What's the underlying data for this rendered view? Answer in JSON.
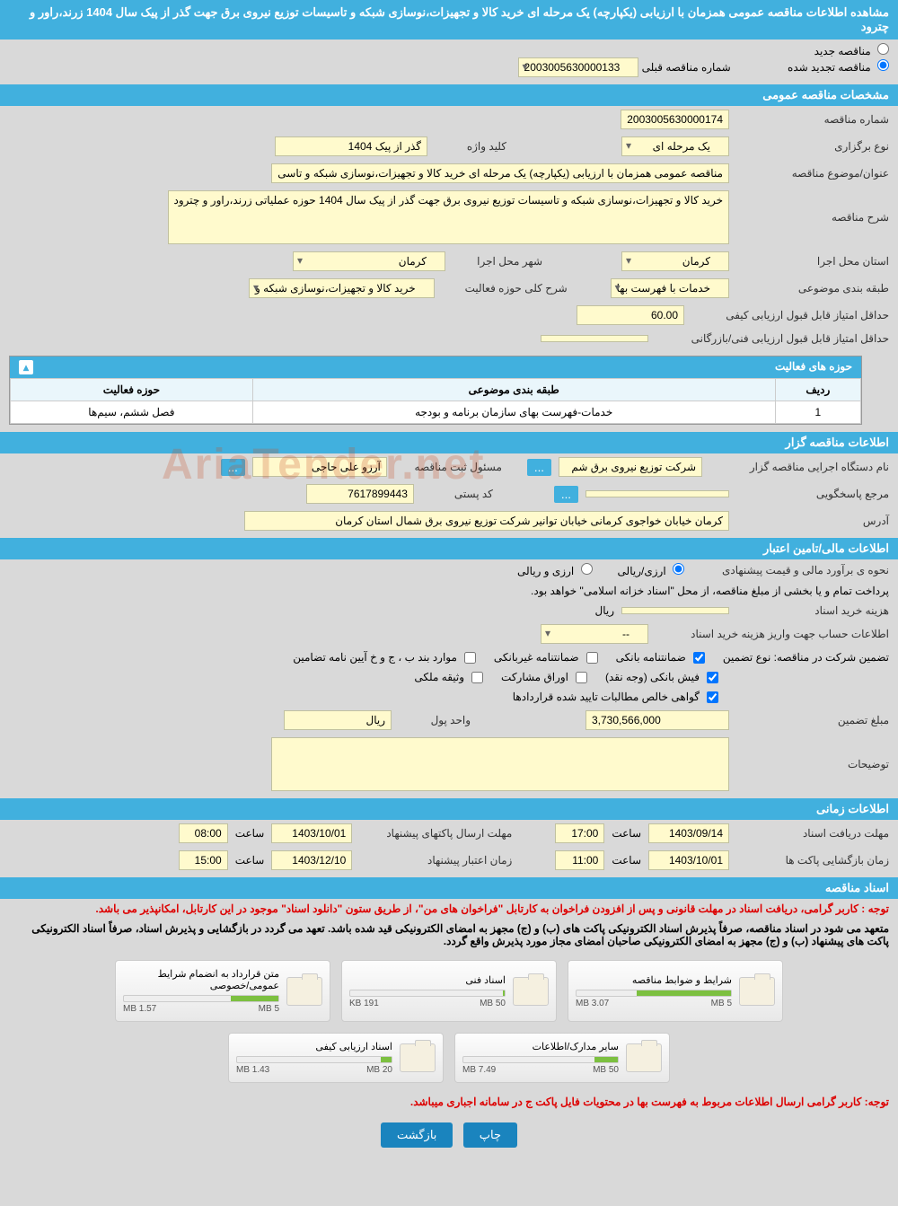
{
  "header": {
    "title": "مشاهده اطلاعات مناقصه عمومی همزمان با ارزیابی (یکپارچه) یک مرحله ای خرید کالا و تجهیزات،نوسازی شبکه و تاسیسات توزیع نیروی برق جهت گذر از پیک سال 1404 زرند،راور و چترود"
  },
  "tender_type": {
    "new_label": "مناقصه جدید",
    "renewed_label": "مناقصه تجدید شده",
    "prev_number_label": "شماره مناقصه قبلی",
    "prev_number": "2003005630000133"
  },
  "sections": {
    "general": "مشخصات مناقصه عمومی",
    "activity_areas": "حوزه های فعالیت",
    "organizer": "اطلاعات مناقصه گزار",
    "financial": "اطلاعات مالی/تامین اعتبار",
    "timing": "اطلاعات زمانی",
    "documents": "اسناد مناقصه"
  },
  "general": {
    "tender_no_label": "شماره مناقصه",
    "tender_no": "2003005630000174",
    "hold_type_label": "نوع برگزاری",
    "hold_type": "یک مرحله ای",
    "keyword_label": "کلید واژه",
    "keyword": "گذر از پیک 1404",
    "subject_label": "عنوان/موضوع مناقصه",
    "subject": "مناقصه عمومی همزمان با ارزیابی (یکپارچه) یک مرحله ای خرید کالا و تجهیزات،نوسازی شبکه و تاسی",
    "desc_label": "شرح مناقصه",
    "desc": "خرید کالا و تجهیزات،نوسازی شبکه و تاسیسات توزیع نیروی برق جهت گذر از پیک سال 1404 حوزه عملیاتی زرند،راور و چترود",
    "province_label": "استان محل اجرا",
    "province": "کرمان",
    "city_label": "شهر محل اجرا",
    "city": "کرمان",
    "category_label": "طبقه بندی موضوعی",
    "category": "خدمات با فهرست بها",
    "activity_desc_label": "شرح کلی حوزه فعالیت",
    "activity_desc": "خرید کالا و تجهیزات،نوسازی شبکه و",
    "min_quality_label": "حداقل امتیاز قابل قبول ارزیابی کیفی",
    "min_quality": "60.00",
    "min_tech_label": "حداقل امتیاز قابل قبول ارزیابی فنی/بازرگانی",
    "min_tech": ""
  },
  "activity_table": {
    "col_row": "ردیف",
    "col_category": "طبقه بندی موضوعی",
    "col_area": "حوزه فعالیت",
    "rows": [
      {
        "idx": "1",
        "cat": "خدمات-فهرست بهای سازمان برنامه و بودجه",
        "area": "فصل ششم، سیم‌ها"
      }
    ]
  },
  "organizer": {
    "exec_label": "نام دستگاه اجرایی مناقصه گزار",
    "exec": "شرکت توزیع نیروی برق شم",
    "registrar_label": "مسئول ثبت مناقصه",
    "registrar": "آرزو علی حاجی",
    "respondent_label": "مرجع پاسخگویی",
    "postal_label": "کد پستی",
    "postal": "7617899443",
    "address_label": "آدرس",
    "address": "کرمان خیابان خواجوی کرمانی خیابان توانیر شرکت توزیع نیروی برق شمال استان کرمان"
  },
  "financial": {
    "estimate_label": "نحوه ی برآورد مالی و قیمت پیشنهادی",
    "opt_currency": "ارزی/ریالی",
    "opt_combined": "ارزی و ریالی",
    "payment_note": "پرداخت تمام و یا بخشی از مبلغ مناقصه، از محل \"اسناد خزانه اسلامی\" خواهد بود.",
    "doc_cost_label": "هزینه خرید اسناد",
    "doc_cost_unit": "ریال",
    "account_label": "اطلاعات حساب جهت واریز هزینه خرید اسناد",
    "account": "--",
    "guarantee_intro": "تضمین شرکت در مناقصه:   نوع تضمین",
    "g_bank": "ضمانتنامه بانکی",
    "g_nonbank": "ضمانتنامه غیربانکی",
    "g_bond": "موارد بند ب ، ج و خ آیین نامه تضامین",
    "g_cash": "فیش بانکی (وجه نقد)",
    "g_securities": "اوراق مشارکت",
    "g_property": "وثیقه ملکی",
    "g_receivables": "گواهی خالص مطالبات تایید شده قراردادها",
    "guarantee_amt_label": "مبلغ تضمین",
    "guarantee_amt": "3,730,566,000",
    "unit_label": "واحد پول",
    "unit": "ریال",
    "notes_label": "توضیحات"
  },
  "timing": {
    "receive_label": "مهلت دریافت اسناد",
    "receive_date": "1403/09/14",
    "receive_time": "17:00",
    "send_label": "مهلت ارسال پاکتهای پیشنهاد",
    "send_date": "1403/10/01",
    "send_time": "08:00",
    "open_label": "زمان بازگشایی پاکت ها",
    "open_date": "1403/10/01",
    "open_time": "11:00",
    "validity_label": "زمان اعتبار پیشنهاد",
    "validity_date": "1403/12/10",
    "validity_time": "15:00",
    "time_word": "ساعت"
  },
  "docs": {
    "note1": "توجه : کاربر گرامی، دریافت اسناد در مهلت قانونی و پس از افزودن فراخوان به کارتابل \"فراخوان های من\"، از طریق ستون \"دانلود اسناد\" موجود در این کارتابل، امکانپذیر می باشد.",
    "note2": "متعهد می شود در اسناد مناقصه، صرفاً پذیرش اسناد الکترونیکی پاکت های (ب) و (ج) مجهز به امضای الکترونیکی قید شده باشد. تعهد می گردد در بازگشایی و پذیرش اسناد، صرفاً اسناد الکترونیکی پاکت های پیشنهاد (ب) و (ج) مجهز به امضای الکترونیکی صاحبان امضای مجاز مورد پذیرش واقع گردد.",
    "files": [
      {
        "title": "شرایط و ضوابط مناقصه",
        "used": "3.07 MB",
        "max": "5 MB",
        "pct": 61
      },
      {
        "title": "اسناد فنی",
        "used": "191 KB",
        "max": "50 MB",
        "pct": 1
      },
      {
        "title": "متن قرارداد به انضمام شرایط عمومی/خصوصی",
        "used": "1.57 MB",
        "max": "5 MB",
        "pct": 31
      },
      {
        "title": "سایر مدارک/اطلاعات",
        "used": "7.49 MB",
        "max": "50 MB",
        "pct": 15
      },
      {
        "title": "اسناد ارزیابی کیفی",
        "used": "1.43 MB",
        "max": "20 MB",
        "pct": 7
      }
    ],
    "bottom_note": "توجه: کاربر گرامی ارسال اطلاعات مربوط به فهرست بها در محتویات فایل پاکت ج در سامانه اجباری میباشد."
  },
  "buttons": {
    "print": "چاپ",
    "back": "بازگشت"
  },
  "watermark": "AriaTender.net",
  "colors": {
    "primary": "#41b0de",
    "field_bg": "#fffacd",
    "btn": "#1a84be",
    "progress": "#7cc040"
  }
}
